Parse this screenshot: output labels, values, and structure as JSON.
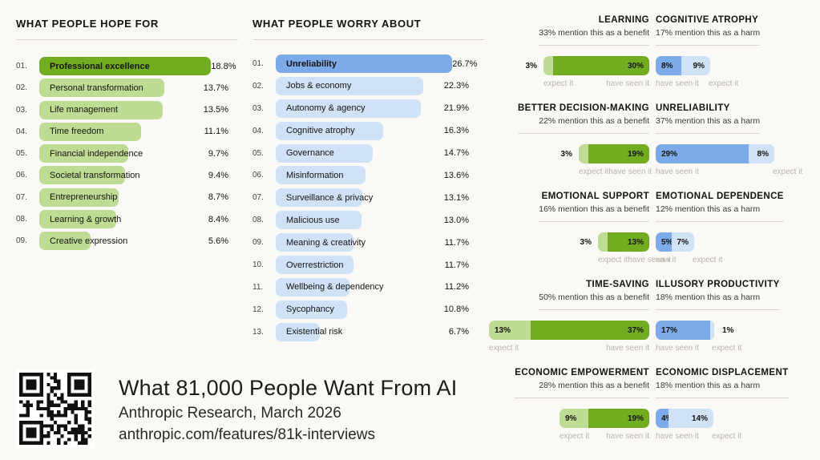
{
  "colors": {
    "background": "#faf9f5",
    "green_dark": "#72ad21",
    "green_light": "#bedc93",
    "blue_dark": "#7dabe9",
    "blue_light": "#cfe2f8",
    "text_dark": "#15140f",
    "caption_gray": "#b9b6ad",
    "rule_gray": "#dcd8cf"
  },
  "chart_data": [
    {
      "id": "hope",
      "type": "bar",
      "orientation": "horizontal",
      "title": "WHAT PEOPLE HOPE FOR",
      "unit": "%",
      "max_value": 18.8,
      "rows": [
        {
          "rank": "01.",
          "label": "Professional excellence",
          "value": 18.8,
          "value_label": "18.8%",
          "emphasis": true
        },
        {
          "rank": "02.",
          "label": "Personal transformation",
          "value": 13.7,
          "value_label": "13.7%",
          "emphasis": false
        },
        {
          "rank": "03.",
          "label": "Life management",
          "value": 13.5,
          "value_label": "13.5%",
          "emphasis": false
        },
        {
          "rank": "04.",
          "label": "Time freedom",
          "value": 11.1,
          "value_label": "11.1%",
          "emphasis": false
        },
        {
          "rank": "05.",
          "label": "Financial independence",
          "value": 9.7,
          "value_label": "9.7%",
          "emphasis": false
        },
        {
          "rank": "06.",
          "label": "Societal transformation",
          "value": 9.4,
          "value_label": "9.4%",
          "emphasis": false
        },
        {
          "rank": "07.",
          "label": "Entrepreneurship",
          "value": 8.7,
          "value_label": "8.7%",
          "emphasis": false
        },
        {
          "rank": "08.",
          "label": "Learning & growth",
          "value": 8.4,
          "value_label": "8.4%",
          "emphasis": false
        },
        {
          "rank": "09.",
          "label": "Creative expression",
          "value": 5.6,
          "value_label": "5.6%",
          "emphasis": false
        }
      ]
    },
    {
      "id": "worry",
      "type": "bar",
      "orientation": "horizontal",
      "title": "WHAT PEOPLE WORRY ABOUT",
      "unit": "%",
      "max_value": 26.7,
      "rows": [
        {
          "rank": "01.",
          "label": "Unreliability",
          "value": 26.7,
          "value_label": "26.7%",
          "emphasis": true
        },
        {
          "rank": "02.",
          "label": "Jobs & economy",
          "value": 22.3,
          "value_label": "22.3%",
          "emphasis": false
        },
        {
          "rank": "03.",
          "label": "Autonomy & agency",
          "value": 21.9,
          "value_label": "21.9%",
          "emphasis": false
        },
        {
          "rank": "04.",
          "label": "Cognitive atrophy",
          "value": 16.3,
          "value_label": "16.3%",
          "emphasis": false
        },
        {
          "rank": "05.",
          "label": "Governance",
          "value": 14.7,
          "value_label": "14.7%",
          "emphasis": false
        },
        {
          "rank": "06.",
          "label": "Misinformation",
          "value": 13.6,
          "value_label": "13.6%",
          "emphasis": false
        },
        {
          "rank": "07.",
          "label": "Surveillance & privacy",
          "value": 13.1,
          "value_label": "13.1%",
          "emphasis": false
        },
        {
          "rank": "08.",
          "label": "Malicious use",
          "value": 13.0,
          "value_label": "13.0%",
          "emphasis": false
        },
        {
          "rank": "09.",
          "label": "Meaning & creativity",
          "value": 11.7,
          "value_label": "11.7%",
          "emphasis": false
        },
        {
          "rank": "10.",
          "label": "Overrestriction",
          "value": 11.7,
          "value_label": "11.7%",
          "emphasis": false
        },
        {
          "rank": "11.",
          "label": "Wellbeing & dependency",
          "value": 11.2,
          "value_label": "11.2%",
          "emphasis": false
        },
        {
          "rank": "12.",
          "label": "Sycophancy",
          "value": 10.8,
          "value_label": "10.8%",
          "emphasis": false
        },
        {
          "rank": "13.",
          "label": "Existential risk",
          "value": 6.7,
          "value_label": "6.7%",
          "emphasis": false
        }
      ]
    },
    {
      "id": "benefit-harm",
      "type": "paired-stacked-bar",
      "pairs": [
        {
          "benefit": {
            "title": "LEARNING",
            "subtitle": "33% mention this as a benefit",
            "segments": [
              {
                "value": 3,
                "label": "3%",
                "label_placement": "outside",
                "caption": "expect it"
              },
              {
                "value": 30,
                "label": "30%",
                "label_placement": "inside",
                "caption": "have seen it"
              }
            ]
          },
          "harm": {
            "title": "COGNITIVE ATROPHY",
            "subtitle": "17% mention this as a harm",
            "segments": [
              {
                "value": 8,
                "label": "8%",
                "label_placement": "inside",
                "caption": "have seen it"
              },
              {
                "value": 9,
                "label": "9%",
                "label_placement": "inside",
                "caption": "expect it"
              }
            ]
          }
        },
        {
          "benefit": {
            "title": "BETTER DECISION-MAKING",
            "subtitle": "22% mention this as a benefit",
            "segments": [
              {
                "value": 3,
                "label": "3%",
                "label_placement": "outside",
                "caption": "expect it"
              },
              {
                "value": 19,
                "label": "19%",
                "label_placement": "inside",
                "caption": "have seen it"
              }
            ]
          },
          "harm": {
            "title": "UNRELIABILITY",
            "subtitle": "37% mention this as a harm",
            "segments": [
              {
                "value": 29,
                "label": "29%",
                "label_placement": "inside",
                "caption": "have seen it"
              },
              {
                "value": 8,
                "label": "8%",
                "label_placement": "inside",
                "caption": "expect it"
              }
            ]
          }
        },
        {
          "benefit": {
            "title": "EMOTIONAL SUPPORT",
            "subtitle": "16% mention this as a benefit",
            "segments": [
              {
                "value": 3,
                "label": "3%",
                "label_placement": "outside",
                "caption": "expect it"
              },
              {
                "value": 13,
                "label": "13%",
                "label_placement": "inside",
                "caption": "have seen it"
              }
            ]
          },
          "harm": {
            "title": "EMOTIONAL DEPENDENCE",
            "subtitle": "12% mention this as a harm",
            "segments": [
              {
                "value": 5,
                "label": "5%",
                "label_placement": "inside",
                "caption": "saw it"
              },
              {
                "value": 7,
                "label": "7%",
                "label_placement": "inside",
                "caption": "expect it"
              }
            ]
          }
        },
        {
          "benefit": {
            "title": "TIME-SAVING",
            "subtitle": "50% mention this as a benefit",
            "segments": [
              {
                "value": 13,
                "label": "13%",
                "label_placement": "inside",
                "caption": "expect it"
              },
              {
                "value": 37,
                "label": "37%",
                "label_placement": "inside",
                "caption": "have seen it"
              }
            ]
          },
          "harm": {
            "title": "ILLUSORY PRODUCTIVITY",
            "subtitle": "18% mention this as a harm",
            "segments": [
              {
                "value": 17,
                "label": "17%",
                "label_placement": "inside",
                "caption": "have seen it"
              },
              {
                "value": 1,
                "label": "1%",
                "label_placement": "outside",
                "caption": "expect it"
              }
            ]
          }
        },
        {
          "benefit": {
            "title": "ECONOMIC EMPOWERMENT",
            "subtitle": "28% mention this as a benefit",
            "segments": [
              {
                "value": 9,
                "label": "9%",
                "label_placement": "inside",
                "caption": "expect it"
              },
              {
                "value": 19,
                "label": "19%",
                "label_placement": "inside",
                "caption": "have seen it"
              }
            ]
          },
          "harm": {
            "title": "ECONOMIC DISPLACEMENT",
            "subtitle": "18% mention this as a harm",
            "segments": [
              {
                "value": 4,
                "label": "4%",
                "label_placement": "inside",
                "caption": "have seen it"
              },
              {
                "value": 14,
                "label": "14%",
                "label_placement": "inside",
                "caption": "expect it"
              }
            ]
          }
        }
      ]
    }
  ],
  "footer": {
    "title": "What 81,000 People Want From AI",
    "subtitle": "Anthropic Research, March 2026",
    "url": "anthropic.com/features/81k-interviews",
    "qr_icon": "qr-code"
  }
}
